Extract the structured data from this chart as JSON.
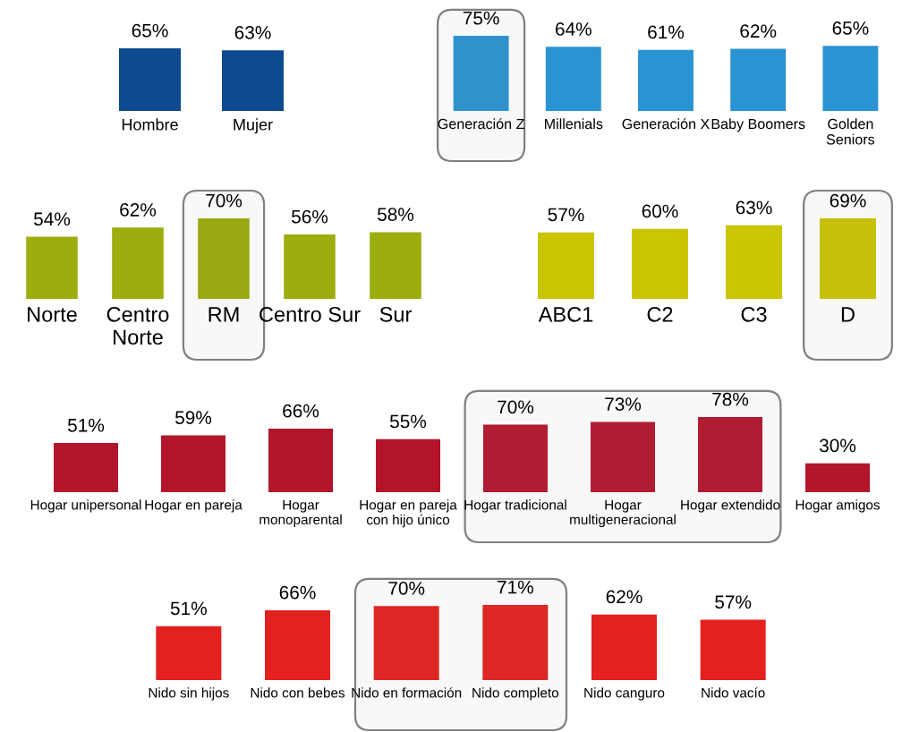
{
  "chart_data": [
    {
      "type": "bar",
      "categories": [
        "Hombre",
        "Mujer"
      ],
      "values": [
        65,
        63
      ],
      "color": "#0d4a8f",
      "value_labels": [
        "65%",
        "63%"
      ]
    },
    {
      "type": "bar",
      "categories": [
        "Generación Z",
        "Millenials",
        "Generación X",
        "Baby Boomers",
        "Golden\nSeniors"
      ],
      "values": [
        75,
        64,
        61,
        62,
        65
      ],
      "color": "#2a93d2",
      "value_labels": [
        "75%",
        "64%",
        "61%",
        "62%",
        "65%"
      ],
      "bands": [
        {
          "axis": "x",
          "from": "Generación Z",
          "to": "Generación Z",
          "color": "#808080"
        }
      ]
    },
    {
      "type": "bar",
      "categories": [
        "Norte",
        "Centro\nNorte",
        "RM",
        "Centro Sur",
        "Sur"
      ],
      "values": [
        54,
        62,
        70,
        56,
        58
      ],
      "color": "#9cad0e",
      "value_labels": [
        "54%",
        "62%",
        "70%",
        "56%",
        "58%"
      ],
      "bands": [
        {
          "axis": "x",
          "from": "RM",
          "to": "RM",
          "color": "#808080"
        }
      ]
    },
    {
      "type": "bar",
      "categories": [
        "ABC1",
        "C2",
        "C3",
        "D"
      ],
      "values": [
        57,
        60,
        63,
        69
      ],
      "color": "#cbc400",
      "value_labels": [
        "57%",
        "60%",
        "63%",
        "69%"
      ],
      "bands": [
        {
          "axis": "x",
          "from": "D",
          "to": "D",
          "color": "#808080"
        }
      ]
    },
    {
      "type": "bar",
      "categories": [
        "Hogar unipersonal",
        "Hogar en pareja",
        "Hogar\nmonoparental",
        "Hogar en pareja\ncon hijo único",
        "Hogar tradicional",
        "Hogar\nmultigeneracional",
        "Hogar extendido",
        "Hogar amigos"
      ],
      "values": [
        51,
        59,
        66,
        55,
        70,
        73,
        78,
        30
      ],
      "color": "#b3162c",
      "value_labels": [
        "51%",
        "59%",
        "66%",
        "55%",
        "70%",
        "73%",
        "78%",
        "30%"
      ],
      "bands": [
        {
          "axis": "x",
          "from": "Hogar tradicional",
          "to": "Hogar extendido",
          "color": "#808080"
        }
      ]
    },
    {
      "type": "bar",
      "categories": [
        "Nido sin hijos",
        "Nido con bebes",
        "Nido en formación",
        "Nido completo",
        "Nido canguro",
        "Nido vacío"
      ],
      "values": [
        51,
        66,
        70,
        71,
        62,
        57
      ],
      "color": "#e3211f",
      "value_labels": [
        "51%",
        "66%",
        "70%",
        "71%",
        "62%",
        "57%"
      ],
      "bands": [
        {
          "axis": "x",
          "from": "Nido en formación",
          "to": "Nido completo",
          "color": "#808080"
        }
      ]
    }
  ]
}
